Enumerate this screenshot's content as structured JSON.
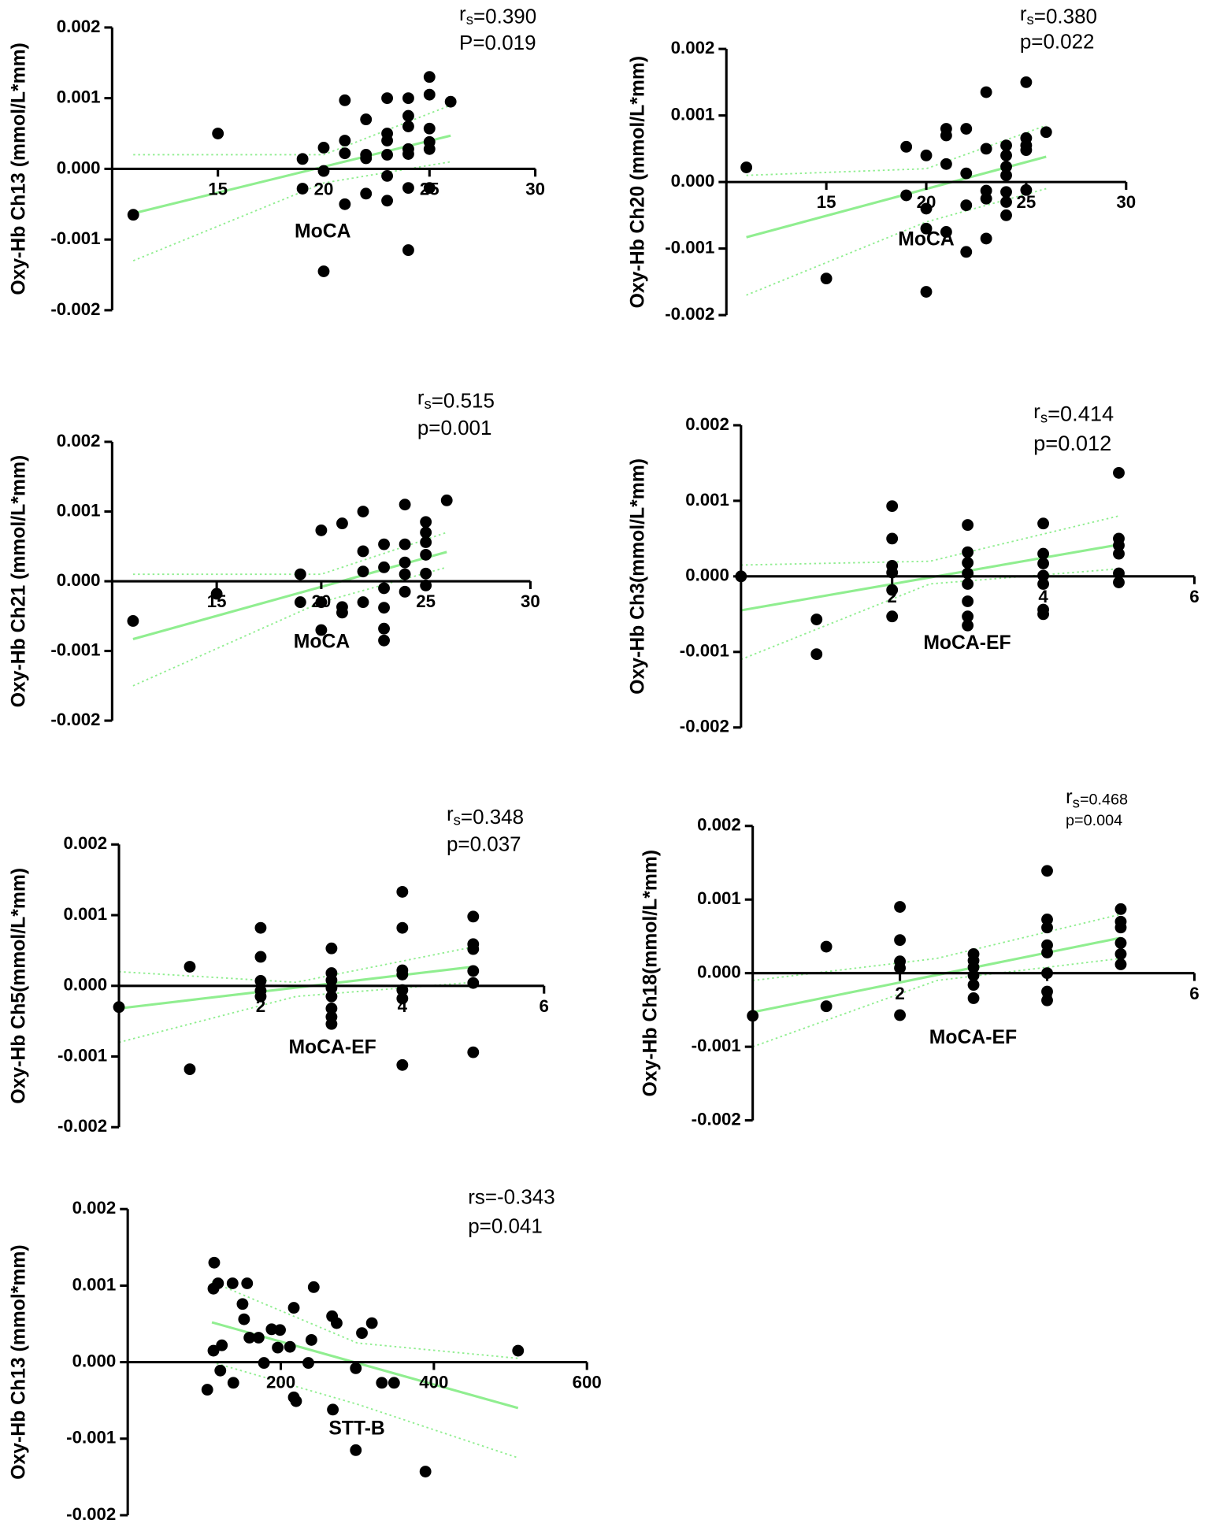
{
  "chart_data": [
    {
      "type": "scatter",
      "x_label": "MoCA",
      "y_label": "Oxy-Hb Ch13 (mmol/L*mm)",
      "stats": {
        "r": "r",
        "r_sub": "s",
        "r_value": "=0.390",
        "p": "P=0.019"
      },
      "xlim": [
        10,
        30
      ],
      "xticks": [
        15,
        20,
        25,
        30
      ],
      "ylim": [
        -0.002,
        0.002
      ],
      "yticks": [
        0.002,
        0.001,
        {
          "value": 0,
          "label": "0.000"
        },
        -0.001,
        -0.002
      ],
      "color": "#000000",
      "fit_color": "#90ee90",
      "x": [
        11,
        15,
        19,
        19,
        20,
        20,
        20,
        21,
        21,
        21,
        21,
        22,
        22,
        22,
        22,
        23,
        23,
        23,
        23,
        23,
        23,
        24,
        24,
        24,
        24,
        24,
        24,
        24,
        25,
        25,
        25,
        25,
        25,
        25,
        26
      ],
      "values": [
        -0.00065,
        0.0005,
        0.00014,
        -0.00028,
        0.0003,
        -3e-05,
        -0.00145,
        0.00097,
        0.0004,
        0.00022,
        -0.0005,
        0.0007,
        0.0002,
        0.00015,
        -0.00035,
        0.001,
        0.0005,
        0.0004,
        0.0002,
        -0.0001,
        -0.00045,
        0.001,
        0.00075,
        0.0006,
        0.00028,
        0.00021,
        -0.00027,
        -0.00115,
        0.0013,
        0.00105,
        0.00057,
        0.00038,
        0.00028,
        -0.00027,
        0.00095
      ],
      "fit": {
        "x": [
          11,
          26
        ],
        "values": [
          -0.00063,
          0.00047
        ]
      },
      "ci_upper": {
        "x": [
          11,
          20,
          26
        ],
        "values": [
          0.0002,
          0.0002,
          0.0009
        ]
      },
      "ci_lower": {
        "x": [
          11,
          20,
          26
        ],
        "values": [
          -0.0013,
          -0.0002,
          0.0001
        ]
      }
    },
    {
      "type": "scatter",
      "x_label": "MoCA",
      "y_label": "Oxy-Hb Ch20 (mmol/L*mm)",
      "stats": {
        "r": "r",
        "r_sub": "s",
        "r_value": "=0.380",
        "p": "p=0.022"
      },
      "xlim": [
        10,
        30
      ],
      "xticks": [
        15,
        20,
        25,
        30
      ],
      "ylim": [
        -0.002,
        0.002
      ],
      "yticks": [
        0.002,
        0.001,
        {
          "value": 0,
          "label": "0.000"
        },
        -0.001,
        -0.002
      ],
      "color": "#000000",
      "fit_color": "#90ee90",
      "x": [
        11,
        15,
        19,
        19,
        20,
        20,
        20,
        20,
        21,
        21,
        21,
        21,
        22,
        22,
        22,
        22,
        23,
        23,
        23,
        23,
        23,
        24,
        24,
        24,
        24,
        24,
        24,
        24,
        25,
        25,
        25,
        25,
        25,
        26
      ],
      "values": [
        0.00022,
        -0.00145,
        0.00053,
        -0.0002,
        0.0004,
        -0.0004,
        -0.0007,
        -0.00165,
        0.0008,
        0.0007,
        0.00027,
        -0.00075,
        0.0008,
        0.00013,
        -0.00035,
        -0.00105,
        0.00135,
        0.0005,
        -0.00013,
        -0.00025,
        -0.00085,
        0.00055,
        0.0004,
        0.00023,
        0.0001,
        -0.00015,
        -0.0003,
        -0.0005,
        0.0015,
        0.00066,
        0.00055,
        0.00048,
        -0.00012,
        0.00075
      ],
      "fit": {
        "x": [
          11,
          26
        ],
        "values": [
          -0.00083,
          0.00038
        ]
      },
      "ci_upper": {
        "x": [
          11,
          20,
          26
        ],
        "values": [
          0.0001,
          0.0002,
          0.00085
        ]
      },
      "ci_lower": {
        "x": [
          11,
          20,
          26
        ],
        "values": [
          -0.0017,
          -0.0006,
          -0.0001
        ]
      }
    },
    {
      "type": "scatter",
      "x_label": "MoCA",
      "y_label": "Oxy-Hb Ch21 (mmol/L*mm)",
      "stats": {
        "r": "r",
        "r_sub": "s",
        "r_value": "=0.515",
        "p": "p=0.001"
      },
      "xlim": [
        10,
        30
      ],
      "xticks": [
        15,
        20,
        25,
        30
      ],
      "ylim": [
        -0.002,
        0.002
      ],
      "yticks": [
        0.002,
        0.001,
        {
          "value": 0,
          "label": "0.000"
        },
        -0.001,
        -0.002
      ],
      "color": "#000000",
      "fit_color": "#90ee90",
      "x": [
        11,
        15,
        19,
        19,
        20,
        20,
        20,
        21,
        21,
        21,
        22,
        22,
        22,
        22,
        23,
        23,
        23,
        23,
        23,
        23,
        24,
        24,
        24,
        24,
        24,
        25,
        25,
        25,
        25,
        25,
        25,
        26
      ],
      "values": [
        -0.00057,
        -0.00018,
        0.0001,
        -0.0003,
        0.00073,
        -0.0003,
        -0.0007,
        0.00083,
        -0.00037,
        -0.00045,
        0.001,
        0.00043,
        0.00014,
        -0.0003,
        0.00053,
        0.0002,
        -0.0001,
        -0.00038,
        -0.00068,
        -0.00085,
        0.0011,
        0.00053,
        0.00027,
        0.0001,
        -0.00015,
        0.00085,
        0.0007,
        0.00056,
        0.00038,
        0.00011,
        -6e-05,
        0.00116
      ],
      "fit": {
        "x": [
          11,
          26
        ],
        "values": [
          -0.00083,
          0.00042
        ]
      },
      "ci_upper": {
        "x": [
          11,
          20,
          26
        ],
        "values": [
          0.0001,
          0.0001,
          0.0007
        ]
      },
      "ci_lower": {
        "x": [
          11,
          20,
          26
        ],
        "values": [
          -0.0015,
          -0.0003,
          0.0002
        ]
      }
    },
    {
      "type": "scatter",
      "x_label": "MoCA-EF",
      "y_label": "Oxy-Hb Ch3(mmol/L*mm)",
      "stats": {
        "r": "r",
        "r_sub": "s",
        "r_value": "=0.414",
        "p": "p=0.012"
      },
      "xlim": [
        0,
        6
      ],
      "xticks": [
        2,
        4,
        6
      ],
      "ylim": [
        -0.002,
        0.002
      ],
      "yticks": [
        0.002,
        0.001,
        {
          "value": 0,
          "label": "0.000"
        },
        -0.001,
        -0.002
      ],
      "color": "#000000",
      "fit_color": "#90ee90",
      "x": [
        0,
        1,
        1,
        2,
        2,
        2,
        2,
        2,
        2,
        3,
        3,
        3,
        3,
        3,
        3,
        3,
        3,
        4,
        4,
        4,
        4,
        4,
        4,
        4,
        5,
        5,
        5,
        5,
        5,
        5
      ],
      "values": [
        0,
        -0.00057,
        -0.00103,
        0.00093,
        0.0005,
        0.00014,
        5e-05,
        -0.00018,
        -0.00053,
        0.00068,
        0.00032,
        0.00018,
        4e-05,
        -0.0001,
        -0.00033,
        -0.00053,
        -0.00065,
        0.0007,
        0.0003,
        0.00017,
        1e-05,
        -0.0001,
        -0.00044,
        -0.0005,
        0.00137,
        0.0005,
        0.00041,
        0.0003,
        4e-05,
        -8e-05
      ],
      "fit": {
        "x": [
          0,
          5
        ],
        "values": [
          -0.00045,
          0.00042
        ]
      },
      "ci_upper": {
        "x": [
          0,
          2.5,
          5
        ],
        "values": [
          0.00015,
          0.0002,
          0.0008
        ]
      },
      "ci_lower": {
        "x": [
          0,
          2.5,
          5
        ],
        "values": [
          -0.0011,
          -0.0001,
          0.0001
        ]
      }
    },
    {
      "type": "scatter",
      "x_label": "MoCA-EF",
      "y_label": "Oxy-Hb Ch5(mmol/L*mm)",
      "stats": {
        "r": "r",
        "r_sub": "s",
        "r_value": "=0.348",
        "p": "p=0.037"
      },
      "xlim": [
        0,
        6
      ],
      "xticks": [
        2,
        4,
        6
      ],
      "ylim": [
        -0.002,
        0.002
      ],
      "yticks": [
        0.002,
        0.001,
        {
          "value": 0,
          "label": "0.000"
        },
        -0.001,
        -0.002
      ],
      "color": "#000000",
      "fit_color": "#90ee90",
      "x": [
        0,
        1,
        1,
        2,
        2,
        2,
        2,
        2,
        3,
        3,
        3,
        3,
        3,
        3,
        3,
        3,
        4,
        4,
        4,
        4,
        4,
        4,
        4,
        5,
        5,
        5,
        5,
        5,
        5
      ],
      "values": [
        -0.0003,
        0.00027,
        -0.00118,
        0.00082,
        0.00041,
        7e-05,
        -7e-05,
        -0.00015,
        0.00053,
        0.00018,
        8e-05,
        -3e-05,
        -0.00015,
        -0.00032,
        -0.00044,
        -0.00054,
        0.00133,
        0.00082,
        0.00022,
        0.00016,
        -6e-05,
        -0.00018,
        -0.00112,
        0.00098,
        0.00059,
        0.00052,
        0.00021,
        4e-05,
        -0.00094
      ],
      "fit": {
        "x": [
          0,
          5
        ],
        "values": [
          -0.00032,
          0.00027
        ]
      },
      "ci_upper": {
        "x": [
          0,
          2.5,
          5
        ],
        "values": [
          0.0002,
          5e-05,
          0.00055
        ]
      },
      "ci_lower": {
        "x": [
          0,
          2.5,
          5
        ],
        "values": [
          -0.0008,
          -0.00015,
          5e-05
        ]
      }
    },
    {
      "type": "scatter",
      "x_label": "MoCA-EF",
      "y_label": "Oxy-Hb Ch18(mmol/L*mm)",
      "stats": {
        "r": "r",
        "r_sub": "s",
        "r_value": "=0.468",
        "p": "p=0.004"
      },
      "xlim": [
        0,
        6
      ],
      "xticks": [
        2,
        4,
        6
      ],
      "ylim": [
        -0.002,
        0.002
      ],
      "yticks": [
        0.002,
        0.001,
        {
          "value": 0,
          "label": "0.000"
        },
        -0.001,
        -0.002
      ],
      "color": "#000000",
      "fit_color": "#90ee90",
      "x": [
        0,
        1,
        1,
        2,
        2,
        2,
        2,
        2,
        3,
        3,
        3,
        3,
        3,
        3,
        4,
        4,
        4,
        4,
        4,
        4,
        4,
        4,
        5,
        5,
        5,
        5,
        5,
        5
      ],
      "values": [
        -0.00058,
        0.00036,
        -0.00045,
        0.0009,
        0.00045,
        0.00016,
        7e-05,
        -0.00057,
        0.00026,
        0.00017,
        8e-05,
        -3e-05,
        -0.00016,
        -0.00034,
        0.00139,
        0.00073,
        0.00062,
        0.00038,
        0.00028,
        0,
        -0.00025,
        -0.00037,
        0.00087,
        0.0007,
        0.00062,
        0.00041,
        0.00026,
        0.00012
      ],
      "fit": {
        "x": [
          0,
          5
        ],
        "values": [
          -0.00053,
          0.00048
        ]
      },
      "ci_upper": {
        "x": [
          0,
          2.5,
          5
        ],
        "values": [
          -0.0001,
          0.0002,
          0.0008
        ]
      },
      "ci_lower": {
        "x": [
          0,
          2.5,
          5
        ],
        "values": [
          -0.001,
          -0.0001,
          0.0002
        ]
      }
    },
    {
      "type": "scatter",
      "x_label": "STT-B",
      "y_label": "Oxy-Hb Ch13 (mmol*mm)",
      "stats": {
        "r": "rs=-0.343",
        "p": "p=0.041"
      },
      "xlim": [
        0,
        600
      ],
      "xticks": [
        200,
        400,
        600
      ],
      "ylim": [
        -0.002,
        0.002
      ],
      "yticks": [
        0.002,
        0.001,
        {
          "value": 0,
          "label": "0.000"
        },
        -0.001,
        -0.002
      ],
      "color": "#000000",
      "fit_color": "#90ee90",
      "x": [
        104,
        112,
        112,
        113,
        118,
        121,
        123,
        137,
        138,
        150,
        152,
        156,
        159,
        171,
        178,
        188,
        196,
        199,
        212,
        217,
        217,
        220,
        236,
        240,
        243,
        267,
        268,
        273,
        298,
        298,
        306,
        319,
        332,
        348,
        389,
        510
      ],
      "values": [
        -0.00036,
        0.00096,
        0.00015,
        0.0013,
        0.00103,
        -0.00011,
        0.00022,
        0.00103,
        -0.00027,
        0.00076,
        0.00056,
        0.00103,
        0.00032,
        0.00032,
        -1e-05,
        0.00043,
        0.00019,
        0.00042,
        0.0002,
        -0.00046,
        0.00071,
        -0.00051,
        -1e-05,
        0.00029,
        0.00098,
        0.0006,
        -0.00062,
        0.00051,
        -8e-05,
        -0.00115,
        0.00038,
        0.00051,
        -0.00027,
        -0.00027,
        -0.00143,
        0.00015
      ],
      "fit": {
        "x": [
          110,
          510
        ],
        "values": [
          0.00052,
          -0.0006
        ]
      },
      "ci_upper": {
        "x": [
          110,
          300,
          510
        ],
        "values": [
          0.00105,
          0.00025,
          5e-05
        ]
      },
      "ci_lower": {
        "x": [
          110,
          300,
          510
        ],
        "values": [
          0,
          -0.00055,
          -0.00125
        ]
      }
    }
  ]
}
